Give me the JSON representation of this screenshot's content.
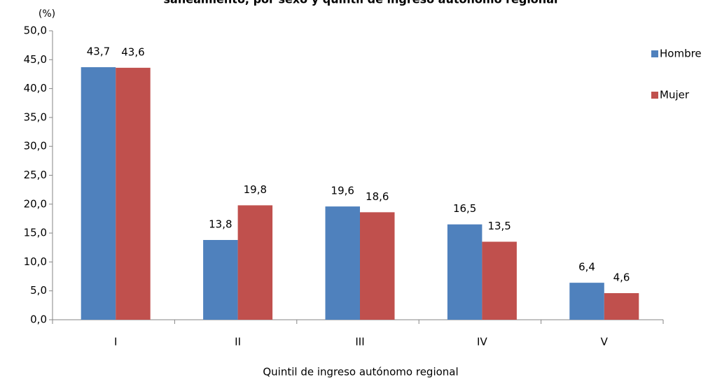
{
  "chart_data": {
    "type": "bar",
    "title": "saneamiento, por sexo y quintil de ingreso autónomo regional",
    "y_unit": "(%)",
    "x_label": "Quintil de ingreso autónomo regional",
    "categories": [
      "I",
      "II",
      "III",
      "IV",
      "V"
    ],
    "series": [
      {
        "name": "Hombre",
        "color": "#4f81bd",
        "values": [
          43.7,
          13.8,
          19.6,
          16.5,
          6.4
        ],
        "value_labels": [
          "43,7",
          "13,8",
          "19,6",
          "16,5",
          "6,4"
        ]
      },
      {
        "name": "Mujer",
        "color": "#c0504d",
        "values": [
          43.6,
          19.8,
          18.6,
          13.5,
          4.6
        ],
        "value_labels": [
          "43,6",
          "19,8",
          "18,6",
          "13,5",
          "4,6"
        ]
      }
    ],
    "ylim": [
      0,
      50
    ],
    "yticks": [
      {
        "value": 0,
        "label": "0,0"
      },
      {
        "value": 5,
        "label": "5,0"
      },
      {
        "value": 10,
        "label": "10,0"
      },
      {
        "value": 15,
        "label": "15,0"
      },
      {
        "value": 20,
        "label": "20,0"
      },
      {
        "value": 25,
        "label": "25,0"
      },
      {
        "value": 30,
        "label": "30,0"
      },
      {
        "value": 35,
        "label": "35,0"
      },
      {
        "value": 40,
        "label": "40,0"
      },
      {
        "value": 45,
        "label": "45,0"
      },
      {
        "value": 50,
        "label": "50,0"
      }
    ],
    "legend": "right"
  }
}
